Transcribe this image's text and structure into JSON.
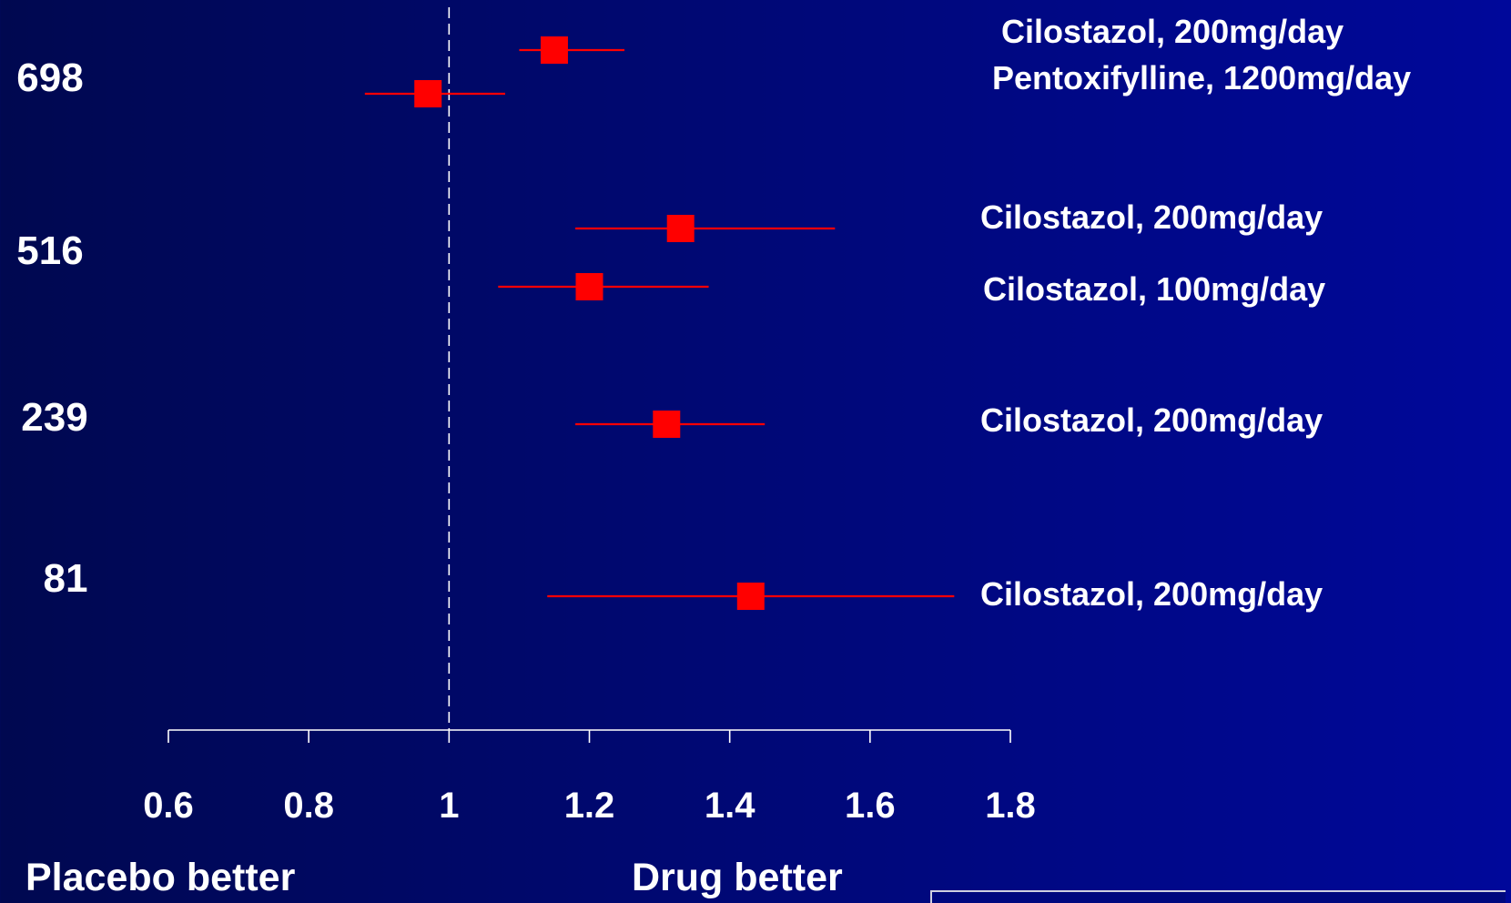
{
  "chart_data": {
    "type": "forest",
    "xlim": [
      0.6,
      1.8
    ],
    "x_ticks": [
      "0.6",
      "0.8",
      "1",
      "1.2",
      "1.4",
      "1.6",
      "1.8"
    ],
    "x_tick_values": [
      0.6,
      0.8,
      1.0,
      1.2,
      1.4,
      1.6,
      1.8
    ],
    "reference_line": 1.0,
    "left_end_label": "Placebo better",
    "right_end_label": "Drug better",
    "groups": [
      {
        "n_label": "698",
        "rows": [
          {
            "label": "Cilostazol, 200mg/day",
            "estimate": 1.15,
            "ci": [
              1.1,
              1.25
            ]
          },
          {
            "label": "Pentoxifylline, 1200mg/day",
            "estimate": 0.97,
            "ci": [
              0.88,
              1.08
            ]
          }
        ]
      },
      {
        "n_label": "516",
        "rows": [
          {
            "label": "Cilostazol, 200mg/day",
            "estimate": 1.33,
            "ci": [
              1.18,
              1.55
            ]
          },
          {
            "label": "Cilostazol, 100mg/day",
            "estimate": 1.2,
            "ci": [
              1.07,
              1.37
            ]
          }
        ]
      },
      {
        "n_label": "239",
        "rows": [
          {
            "label": "Cilostazol, 200mg/day",
            "estimate": 1.31,
            "ci": [
              1.18,
              1.45
            ]
          }
        ]
      },
      {
        "n_label": "81",
        "rows": [
          {
            "label": "Cilostazol, 200mg/day",
            "estimate": 1.43,
            "ci": [
              1.14,
              1.72
            ]
          }
        ]
      }
    ],
    "colors": {
      "marker": "#ff0000",
      "ci_line": "#ff0000",
      "axis": "#ffffff",
      "background": "#00087a"
    }
  }
}
